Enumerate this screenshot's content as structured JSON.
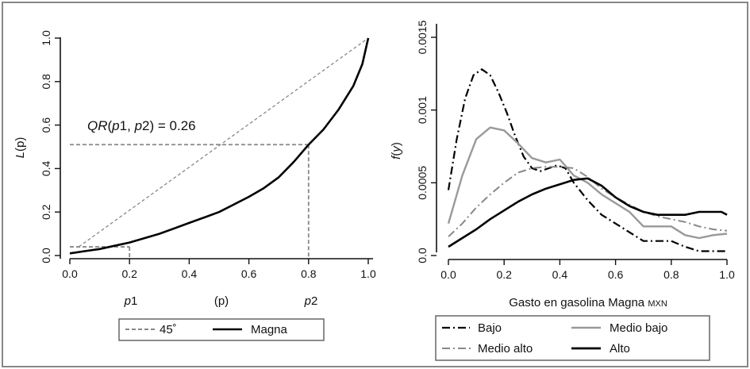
{
  "chart_data": [
    {
      "type": "line",
      "xlabel": "(p)",
      "ylabel_italic": "L",
      "ylabel_rest": "(p)",
      "xlim": [
        0,
        1
      ],
      "ylim": [
        0,
        1
      ],
      "xticks": [
        "0.0",
        "0.2",
        "0.4",
        "0.6",
        "0.8",
        "1.0"
      ],
      "yticks": [
        "0.0",
        "0.2",
        "0.4",
        "0.6",
        "0.8",
        "1.0"
      ],
      "annotation": {
        "prefix_italic": "QR",
        "open": "(",
        "p1_italic": "p",
        "p1_num": "1",
        "sep": ", ",
        "p2_italic": "p",
        "p2_num": "2",
        "close": ") = 0.26"
      },
      "marks": {
        "p1": {
          "italic": "p",
          "num": "1",
          "x": 0.2,
          "y": 0.04
        },
        "p2": {
          "italic": "p",
          "num": "2",
          "x": 0.8,
          "y": 0.51
        }
      },
      "series": [
        {
          "name": "45˚",
          "style": "dashed-gray",
          "x": [
            0.03,
            1.0
          ],
          "y": [
            0.04,
            1.0
          ]
        },
        {
          "name": "Magna",
          "style": "solid-black",
          "x": [
            0.0,
            0.05,
            0.1,
            0.15,
            0.2,
            0.25,
            0.3,
            0.35,
            0.4,
            0.45,
            0.5,
            0.55,
            0.6,
            0.65,
            0.7,
            0.75,
            0.8,
            0.85,
            0.9,
            0.95,
            0.98,
            1.0
          ],
          "y": [
            0.01,
            0.02,
            0.03,
            0.045,
            0.06,
            0.08,
            0.1,
            0.125,
            0.15,
            0.175,
            0.2,
            0.235,
            0.27,
            0.31,
            0.36,
            0.43,
            0.51,
            0.58,
            0.67,
            0.78,
            0.88,
            1.0
          ]
        }
      ],
      "legend": "bottom"
    },
    {
      "type": "line",
      "xlabel": "Gasto en gasolina Magna",
      "xlabel_unit": "MXN",
      "ylabel_italic": "f",
      "ylabel_open": "(",
      "ylabel_var": "y",
      "ylabel_close": ")",
      "xlim": [
        0,
        1
      ],
      "ylim": [
        0,
        0.0015
      ],
      "xticks": [
        "0.0",
        "0.2",
        "0.4",
        "0.6",
        "0.8",
        "1.0"
      ],
      "yticks": [
        "0.0",
        "0.0005",
        "0.001",
        "0.0015"
      ],
      "legend": "bottom",
      "series": [
        {
          "name": "Bajo",
          "style": "dashdot-black",
          "x": [
            0.0,
            0.03,
            0.06,
            0.09,
            0.12,
            0.15,
            0.18,
            0.21,
            0.24,
            0.27,
            0.3,
            0.33,
            0.36,
            0.39,
            0.42,
            0.45,
            0.5,
            0.55,
            0.6,
            0.65,
            0.7,
            0.75,
            0.8,
            0.85,
            0.9,
            0.95,
            1.0
          ],
          "y": [
            0.00045,
            0.0008,
            0.00108,
            0.00124,
            0.00128,
            0.00124,
            0.00112,
            0.00098,
            0.00082,
            0.00068,
            0.0006,
            0.00058,
            0.0006,
            0.00062,
            0.0006,
            0.0005,
            0.00038,
            0.00028,
            0.00022,
            0.00016,
            0.0001,
            0.0001,
            0.0001,
            6e-05,
            3e-05,
            3e-05,
            3e-05
          ]
        },
        {
          "name": "Medio bajo",
          "style": "solid-gray",
          "x": [
            0.0,
            0.05,
            0.1,
            0.15,
            0.2,
            0.25,
            0.3,
            0.35,
            0.4,
            0.45,
            0.5,
            0.55,
            0.6,
            0.65,
            0.7,
            0.75,
            0.8,
            0.85,
            0.9,
            0.95,
            1.0
          ],
          "y": [
            0.00022,
            0.00055,
            0.0008,
            0.00088,
            0.00086,
            0.00077,
            0.00067,
            0.00064,
            0.00066,
            0.00055,
            0.0005,
            0.00042,
            0.00036,
            0.0003,
            0.0002,
            0.0002,
            0.0002,
            0.00014,
            0.00012,
            0.00014,
            0.00015
          ]
        },
        {
          "name": "Medio alto",
          "style": "dashdot-gray",
          "x": [
            0.0,
            0.05,
            0.1,
            0.15,
            0.2,
            0.25,
            0.3,
            0.35,
            0.4,
            0.45,
            0.5,
            0.55,
            0.6,
            0.65,
            0.7,
            0.75,
            0.8,
            0.85,
            0.9,
            0.95,
            1.0
          ],
          "y": [
            0.00013,
            0.00022,
            0.00033,
            0.00042,
            0.0005,
            0.00057,
            0.0006,
            0.00061,
            0.00061,
            0.0006,
            0.00054,
            0.00046,
            0.0004,
            0.00035,
            0.0003,
            0.00027,
            0.00025,
            0.00023,
            0.0002,
            0.00018,
            0.00017
          ]
        },
        {
          "name": "Alto",
          "style": "solid-black",
          "x": [
            0.0,
            0.05,
            0.1,
            0.15,
            0.2,
            0.25,
            0.3,
            0.35,
            0.4,
            0.45,
            0.5,
            0.55,
            0.6,
            0.65,
            0.7,
            0.75,
            0.8,
            0.85,
            0.9,
            0.95,
            0.98,
            1.0
          ],
          "y": [
            6e-05,
            0.00012,
            0.00018,
            0.00025,
            0.00031,
            0.00037,
            0.00042,
            0.00046,
            0.00049,
            0.00052,
            0.00053,
            0.00048,
            0.0004,
            0.00034,
            0.0003,
            0.00028,
            0.00028,
            0.00028,
            0.0003,
            0.0003,
            0.0003,
            0.00028
          ]
        }
      ]
    }
  ]
}
